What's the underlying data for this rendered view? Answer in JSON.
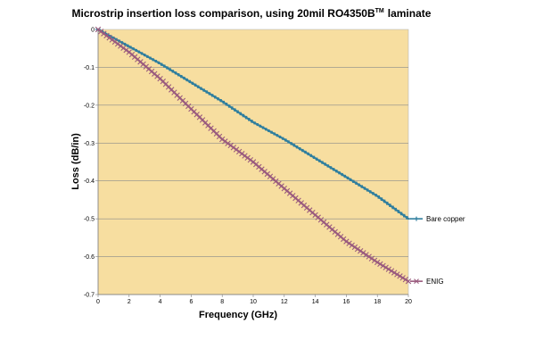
{
  "chart_data": {
    "type": "line",
    "title": "Microstrip insertion loss comparison, using 20mil RO4350B",
    "title_superscript": "TM",
    "title_suffix": "laminate",
    "xlabel": "Frequency (GHz)",
    "ylabel": "Loss (dB/in)",
    "xlim": [
      0,
      20
    ],
    "ylim": [
      -0.7,
      0
    ],
    "x_ticks": [
      0,
      2,
      4,
      6,
      8,
      10,
      12,
      14,
      16,
      18,
      20
    ],
    "y_ticks": [
      0,
      -0.1,
      -0.2,
      -0.3,
      -0.4,
      -0.5,
      -0.6,
      -0.7
    ],
    "x_tick_labels": [
      "0",
      "2",
      "4",
      "6",
      "8",
      "10",
      "12",
      "14",
      "16",
      "18",
      "20"
    ],
    "y_tick_labels": [
      "0",
      "-0.1",
      "-0.2",
      "-0.3",
      "-0.4",
      "-0.5",
      "-0.6",
      "-0.7"
    ],
    "grid": "horizontal",
    "legend_placement": "right",
    "plot_background": "#f7dea0",
    "x": [
      0,
      2,
      4,
      6,
      8,
      10,
      12,
      14,
      16,
      18,
      20
    ],
    "series": [
      {
        "name": "Bare copper",
        "color": "#2f7e9e",
        "marker": "dash",
        "values": [
          0,
          -0.045,
          -0.09,
          -0.14,
          -0.19,
          -0.245,
          -0.29,
          -0.34,
          -0.39,
          -0.44,
          -0.5
        ]
      },
      {
        "name": "ENIG",
        "color": "#9a5b7e",
        "marker": "x",
        "values": [
          0,
          -0.06,
          -0.13,
          -0.21,
          -0.29,
          -0.35,
          -0.42,
          -0.49,
          -0.56,
          -0.615,
          -0.665
        ]
      }
    ]
  }
}
